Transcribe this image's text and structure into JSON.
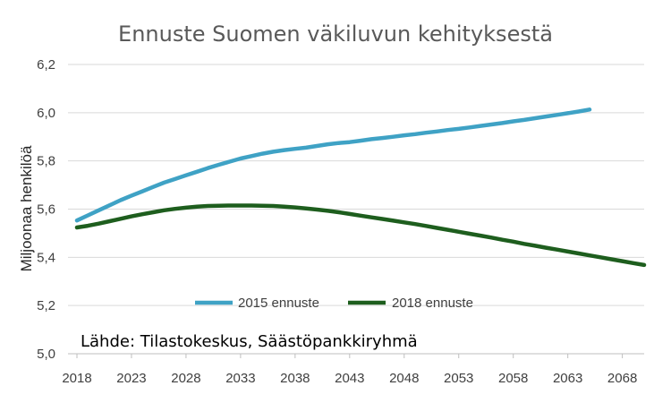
{
  "chart_data": {
    "type": "line",
    "title": "Ennuste Suomen väkiluvun kehityksestä",
    "ylabel": "Miljoonaa henkilöä",
    "xlabel": "",
    "xlim": [
      2018,
      2070
    ],
    "ylim": [
      5.0,
      6.2
    ],
    "ytick_values": [
      5.0,
      5.2,
      5.4,
      5.6,
      5.8,
      6.0,
      6.2
    ],
    "ytick_labels": [
      "5,0",
      "5,2",
      "5,4",
      "5,6",
      "5,8",
      "6,0",
      "6,2"
    ],
    "xtick_values": [
      2018,
      2023,
      2028,
      2033,
      2038,
      2043,
      2048,
      2053,
      2058,
      2063,
      2068
    ],
    "xtick_labels": [
      "2018",
      "2023",
      "2028",
      "2033",
      "2038",
      "2043",
      "2048",
      "2053",
      "2058",
      "2063",
      "2068"
    ],
    "grid": "horizontal",
    "legend_position": "bottom",
    "source_note": "Lähde: Tilastokeskus, Säästöpankkiryhmä",
    "series": [
      {
        "name": "2015 ennuste",
        "color": "#3FA2C5",
        "x": [
          2018,
          2019,
          2020,
          2021,
          2022,
          2023,
          2024,
          2025,
          2026,
          2027,
          2028,
          2029,
          2030,
          2031,
          2032,
          2033,
          2034,
          2035,
          2036,
          2037,
          2038,
          2039,
          2040,
          2041,
          2042,
          2043,
          2044,
          2045,
          2046,
          2047,
          2048,
          2049,
          2050,
          2051,
          2052,
          2053,
          2054,
          2055,
          2056,
          2057,
          2058,
          2059,
          2060,
          2061,
          2062,
          2063,
          2064,
          2065
        ],
        "values": [
          5.553,
          5.574,
          5.595,
          5.616,
          5.637,
          5.656,
          5.674,
          5.692,
          5.71,
          5.725,
          5.74,
          5.755,
          5.77,
          5.784,
          5.797,
          5.81,
          5.82,
          5.83,
          5.838,
          5.845,
          5.85,
          5.855,
          5.862,
          5.869,
          5.874,
          5.878,
          5.884,
          5.89,
          5.895,
          5.9,
          5.906,
          5.911,
          5.917,
          5.922,
          5.928,
          5.933,
          5.939,
          5.945,
          5.951,
          5.957,
          5.964,
          5.97,
          5.977,
          5.984,
          5.991,
          5.998,
          6.005,
          6.013
        ]
      },
      {
        "name": "2018 ennuste",
        "color": "#1E5E1E",
        "x": [
          2018,
          2019,
          2020,
          2021,
          2022,
          2023,
          2024,
          2025,
          2026,
          2027,
          2028,
          2029,
          2030,
          2031,
          2032,
          2033,
          2034,
          2035,
          2036,
          2037,
          2038,
          2039,
          2040,
          2041,
          2042,
          2043,
          2044,
          2045,
          2046,
          2047,
          2048,
          2049,
          2050,
          2051,
          2052,
          2053,
          2054,
          2055,
          2056,
          2057,
          2058,
          2059,
          2060,
          2061,
          2062,
          2063,
          2064,
          2065,
          2066,
          2067,
          2068,
          2069,
          2070
        ],
        "values": [
          5.524,
          5.531,
          5.54,
          5.55,
          5.56,
          5.57,
          5.579,
          5.587,
          5.595,
          5.601,
          5.606,
          5.61,
          5.613,
          5.614,
          5.615,
          5.615,
          5.615,
          5.614,
          5.613,
          5.61,
          5.607,
          5.603,
          5.598,
          5.593,
          5.587,
          5.58,
          5.573,
          5.566,
          5.559,
          5.552,
          5.545,
          5.538,
          5.53,
          5.522,
          5.514,
          5.506,
          5.498,
          5.49,
          5.482,
          5.473,
          5.465,
          5.456,
          5.448,
          5.44,
          5.432,
          5.424,
          5.416,
          5.408,
          5.4,
          5.392,
          5.384,
          5.376,
          5.368
        ]
      }
    ]
  }
}
